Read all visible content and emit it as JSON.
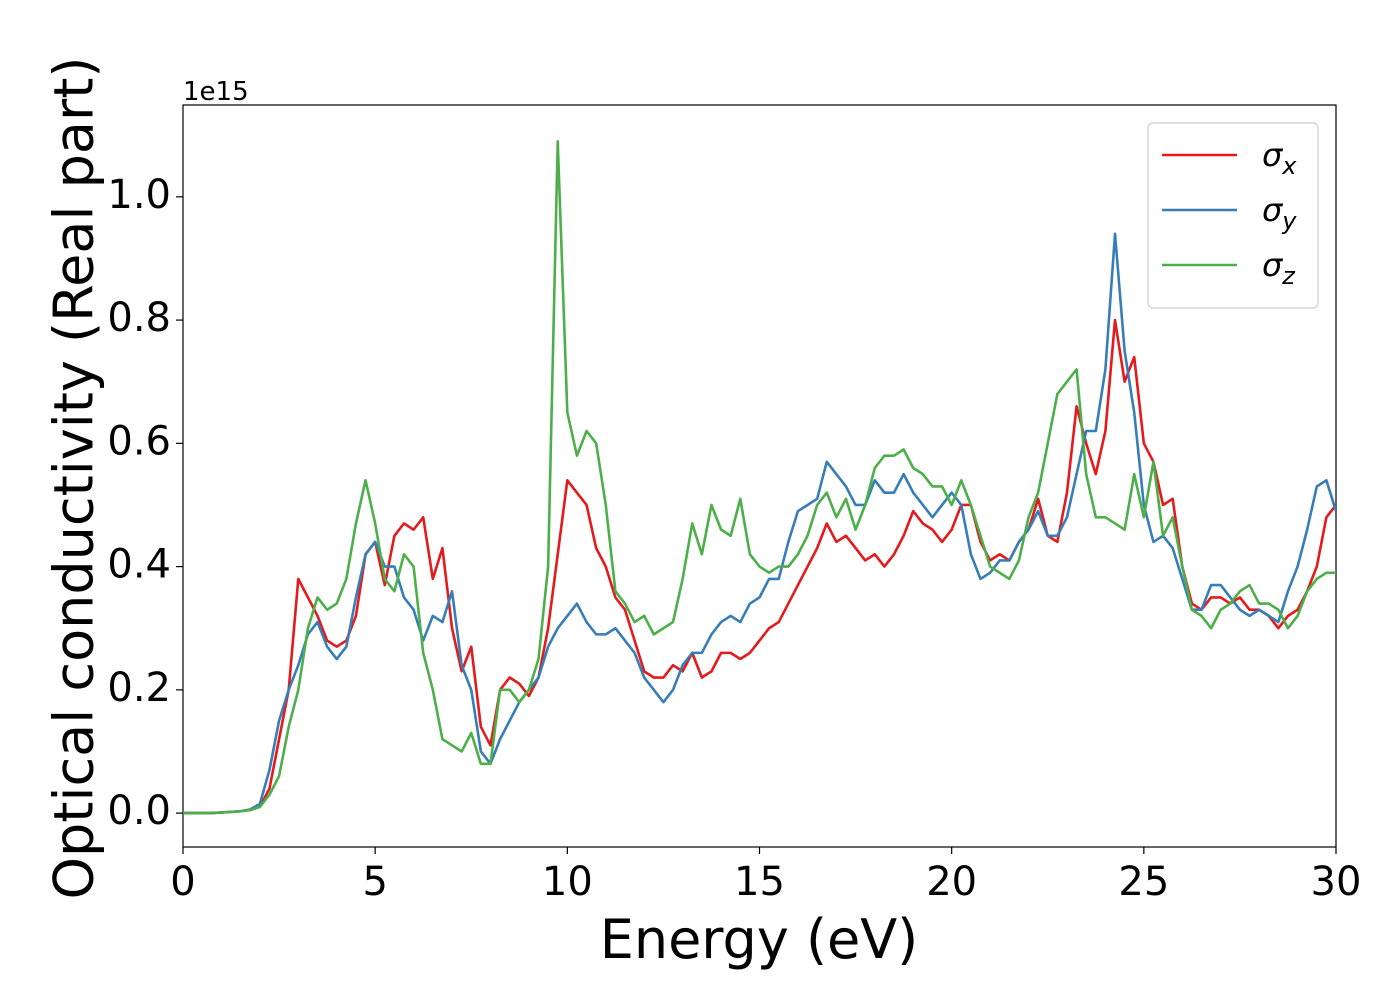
{
  "chart_data": {
    "type": "line",
    "xlabel": "Energy (eV)",
    "ylabel": "Optical conductivity (Real part)",
    "y_offset_label": "1e15",
    "xlim": [
      0,
      30
    ],
    "ylim": [
      -0.055,
      1.149
    ],
    "xticks": [
      0,
      5,
      10,
      15,
      20,
      25,
      30
    ],
    "yticks": [
      {
        "value": 0,
        "label": "0.0"
      },
      {
        "value": 0.2,
        "label": "0.2"
      },
      {
        "value": 0.4,
        "label": "0.4"
      },
      {
        "value": 0.6,
        "label": "0.6"
      },
      {
        "value": 0.8,
        "label": "0.8"
      },
      {
        "value": 1.0,
        "label": "1.0"
      }
    ],
    "grid": false,
    "legend": "upper right",
    "x": [
      0,
      0.25,
      0.5,
      0.75,
      1,
      1.25,
      1.5,
      1.75,
      2,
      2.25,
      2.5,
      2.75,
      3,
      3.25,
      3.5,
      3.75,
      4,
      4.25,
      4.5,
      4.75,
      5,
      5.25,
      5.5,
      5.75,
      6,
      6.25,
      6.5,
      6.75,
      7,
      7.25,
      7.5,
      7.75,
      8,
      8.25,
      8.5,
      8.75,
      9,
      9.25,
      9.5,
      9.75,
      10,
      10.25,
      10.5,
      10.75,
      11,
      11.25,
      11.5,
      11.75,
      12,
      12.25,
      12.5,
      12.75,
      13,
      13.25,
      13.5,
      13.75,
      14,
      14.25,
      14.5,
      14.75,
      15,
      15.25,
      15.5,
      15.75,
      16,
      16.25,
      16.5,
      16.75,
      17,
      17.25,
      17.5,
      17.75,
      18,
      18.25,
      18.5,
      18.75,
      19,
      19.25,
      19.5,
      19.75,
      20,
      20.25,
      20.5,
      20.75,
      21,
      21.25,
      21.5,
      21.75,
      22,
      22.25,
      22.5,
      22.75,
      23,
      23.25,
      23.5,
      23.75,
      24,
      24.25,
      24.5,
      24.75,
      25,
      25.25,
      25.5,
      25.75,
      26,
      26.25,
      26.5,
      26.75,
      27,
      27.25,
      27.5,
      27.75,
      28,
      28.25,
      28.5,
      28.75,
      29,
      29.25,
      29.5,
      29.75,
      30
    ],
    "series": [
      {
        "name": "σx",
        "color": "#e41a1c",
        "values": [
          0,
          0,
          0,
          0,
          0.001,
          0.002,
          0.003,
          0.005,
          0.01,
          0.04,
          0.12,
          0.2,
          0.38,
          0.35,
          0.32,
          0.28,
          0.27,
          0.28,
          0.32,
          0.42,
          0.44,
          0.37,
          0.45,
          0.47,
          0.46,
          0.48,
          0.38,
          0.43,
          0.3,
          0.23,
          0.27,
          0.14,
          0.11,
          0.2,
          0.22,
          0.21,
          0.19,
          0.22,
          0.3,
          0.42,
          0.54,
          0.52,
          0.5,
          0.43,
          0.4,
          0.35,
          0.33,
          0.28,
          0.23,
          0.22,
          0.22,
          0.24,
          0.23,
          0.26,
          0.22,
          0.23,
          0.26,
          0.26,
          0.25,
          0.26,
          0.28,
          0.3,
          0.31,
          0.34,
          0.37,
          0.4,
          0.43,
          0.47,
          0.44,
          0.45,
          0.43,
          0.41,
          0.42,
          0.4,
          0.42,
          0.45,
          0.49,
          0.47,
          0.46,
          0.44,
          0.46,
          0.5,
          0.5,
          0.44,
          0.41,
          0.42,
          0.41,
          0.44,
          0.46,
          0.51,
          0.45,
          0.44,
          0.52,
          0.66,
          0.6,
          0.55,
          0.62,
          0.8,
          0.7,
          0.74,
          0.6,
          0.57,
          0.5,
          0.51,
          0.4,
          0.34,
          0.33,
          0.35,
          0.35,
          0.34,
          0.35,
          0.33,
          0.33,
          0.32,
          0.3,
          0.32,
          0.33,
          0.36,
          0.4,
          0.48,
          0.5
        ]
      },
      {
        "name": "σy",
        "color": "#377eb8",
        "values": [
          0,
          0,
          0,
          0,
          0.001,
          0.002,
          0.003,
          0.006,
          0.015,
          0.07,
          0.15,
          0.2,
          0.24,
          0.29,
          0.31,
          0.27,
          0.25,
          0.27,
          0.35,
          0.42,
          0.44,
          0.4,
          0.4,
          0.35,
          0.33,
          0.28,
          0.32,
          0.31,
          0.36,
          0.24,
          0.2,
          0.1,
          0.08,
          0.12,
          0.15,
          0.18,
          0.2,
          0.22,
          0.27,
          0.3,
          0.32,
          0.34,
          0.31,
          0.29,
          0.29,
          0.3,
          0.28,
          0.26,
          0.22,
          0.2,
          0.18,
          0.2,
          0.24,
          0.26,
          0.26,
          0.29,
          0.31,
          0.32,
          0.31,
          0.34,
          0.35,
          0.38,
          0.38,
          0.44,
          0.49,
          0.5,
          0.51,
          0.57,
          0.55,
          0.53,
          0.5,
          0.5,
          0.54,
          0.52,
          0.52,
          0.55,
          0.52,
          0.5,
          0.48,
          0.5,
          0.52,
          0.5,
          0.42,
          0.38,
          0.39,
          0.41,
          0.41,
          0.44,
          0.46,
          0.49,
          0.45,
          0.45,
          0.48,
          0.55,
          0.62,
          0.62,
          0.72,
          0.94,
          0.75,
          0.65,
          0.5,
          0.44,
          0.45,
          0.43,
          0.38,
          0.33,
          0.33,
          0.37,
          0.37,
          0.35,
          0.33,
          0.32,
          0.33,
          0.32,
          0.31,
          0.36,
          0.4,
          0.46,
          0.53,
          0.54,
          0.49
        ]
      },
      {
        "name": "σz",
        "color": "#4daf4a",
        "values": [
          0,
          0,
          0,
          0,
          0.001,
          0.002,
          0.003,
          0.005,
          0.01,
          0.03,
          0.06,
          0.14,
          0.2,
          0.3,
          0.35,
          0.33,
          0.34,
          0.38,
          0.47,
          0.54,
          0.47,
          0.38,
          0.36,
          0.42,
          0.4,
          0.26,
          0.2,
          0.12,
          0.11,
          0.1,
          0.13,
          0.08,
          0.08,
          0.2,
          0.2,
          0.18,
          0.2,
          0.25,
          0.4,
          1.09,
          0.65,
          0.58,
          0.62,
          0.6,
          0.5,
          0.36,
          0.34,
          0.31,
          0.32,
          0.29,
          0.3,
          0.31,
          0.38,
          0.47,
          0.42,
          0.5,
          0.46,
          0.45,
          0.51,
          0.42,
          0.4,
          0.39,
          0.4,
          0.4,
          0.42,
          0.45,
          0.5,
          0.52,
          0.48,
          0.51,
          0.46,
          0.5,
          0.56,
          0.58,
          0.58,
          0.59,
          0.56,
          0.55,
          0.53,
          0.53,
          0.5,
          0.54,
          0.5,
          0.45,
          0.4,
          0.39,
          0.38,
          0.41,
          0.48,
          0.52,
          0.6,
          0.68,
          0.7,
          0.72,
          0.55,
          0.48,
          0.48,
          0.47,
          0.46,
          0.55,
          0.48,
          0.57,
          0.45,
          0.48,
          0.4,
          0.33,
          0.32,
          0.3,
          0.33,
          0.34,
          0.36,
          0.37,
          0.34,
          0.34,
          0.33,
          0.3,
          0.32,
          0.36,
          0.38,
          0.39,
          0.39
        ]
      }
    ]
  }
}
